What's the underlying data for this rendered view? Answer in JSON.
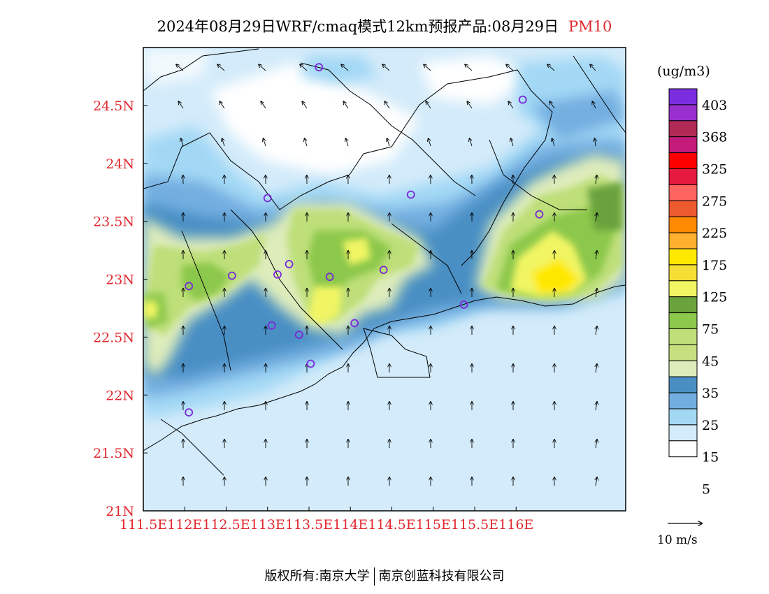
{
  "title": {
    "text": "2024年08月29日WRF/cmaq模式12km预报产品:08月29日",
    "pollutant": "PM10"
  },
  "colors": {
    "label_red": "#e0282e",
    "station_marker": "#7a2ad8",
    "coast": "#000000"
  },
  "map": {
    "lat_labels": [
      "24.5N",
      "24N",
      "23.5N",
      "23N",
      "22.5N",
      "22N",
      "21.5N",
      "21N"
    ],
    "lat_values": [
      24.5,
      24,
      23.5,
      23,
      22.5,
      22,
      21.5,
      21
    ],
    "lon_labels": [
      "111.5E",
      "112E",
      "112.5E",
      "113E",
      "113.5E",
      "114E",
      "114.5E",
      "115E",
      "115.5E",
      "116E"
    ],
    "lon_values": [
      111.5,
      112,
      112.5,
      113,
      113.5,
      114,
      114.5,
      115,
      115.5,
      116
    ],
    "stations": [
      {
        "lon": 113.62,
        "lat": 24.83
      },
      {
        "lon": 116.08,
        "lat": 24.55
      },
      {
        "lon": 113.0,
        "lat": 23.7
      },
      {
        "lon": 114.73,
        "lat": 23.73
      },
      {
        "lon": 116.28,
        "lat": 23.56
      },
      {
        "lon": 112.57,
        "lat": 23.03
      },
      {
        "lon": 113.26,
        "lat": 23.13
      },
      {
        "lon": 113.12,
        "lat": 23.04
      },
      {
        "lon": 113.75,
        "lat": 23.02
      },
      {
        "lon": 114.4,
        "lat": 23.08
      },
      {
        "lon": 112.05,
        "lat": 22.94
      },
      {
        "lon": 113.05,
        "lat": 22.6
      },
      {
        "lon": 113.38,
        "lat": 22.52
      },
      {
        "lon": 114.05,
        "lat": 22.62
      },
      {
        "lon": 113.52,
        "lat": 22.27
      },
      {
        "lon": 115.37,
        "lat": 22.78
      },
      {
        "lon": 112.05,
        "lat": 21.85
      }
    ]
  },
  "legend": {
    "units": "(ug/m3)",
    "levels": [
      "403",
      "368",
      "325",
      "275",
      "225",
      "175",
      "125",
      "75",
      "45",
      "35",
      "25",
      "15",
      "5"
    ],
    "colors": [
      "#7b2ee0",
      "#9a2fcf",
      "#b02a55",
      "#c41b7a",
      "#ff0000",
      "#e6193f",
      "#ff6461",
      "#ed5a2f",
      "#ff8a00",
      "#ffb02e",
      "#ffe800",
      "#f5df35",
      "#f1f563",
      "#6aa33c",
      "#8cc84b",
      "#bedf79",
      "#c6e080",
      "#deecbb",
      "#4a8fc4",
      "#73aee0",
      "#a3d8f5",
      "#d3ebfa",
      "#ffffff"
    ],
    "vector_label": "10 m/s"
  },
  "footer": {
    "copyright": "版权所有:南京大学",
    "company": "南京创蓝科技有限公司"
  }
}
